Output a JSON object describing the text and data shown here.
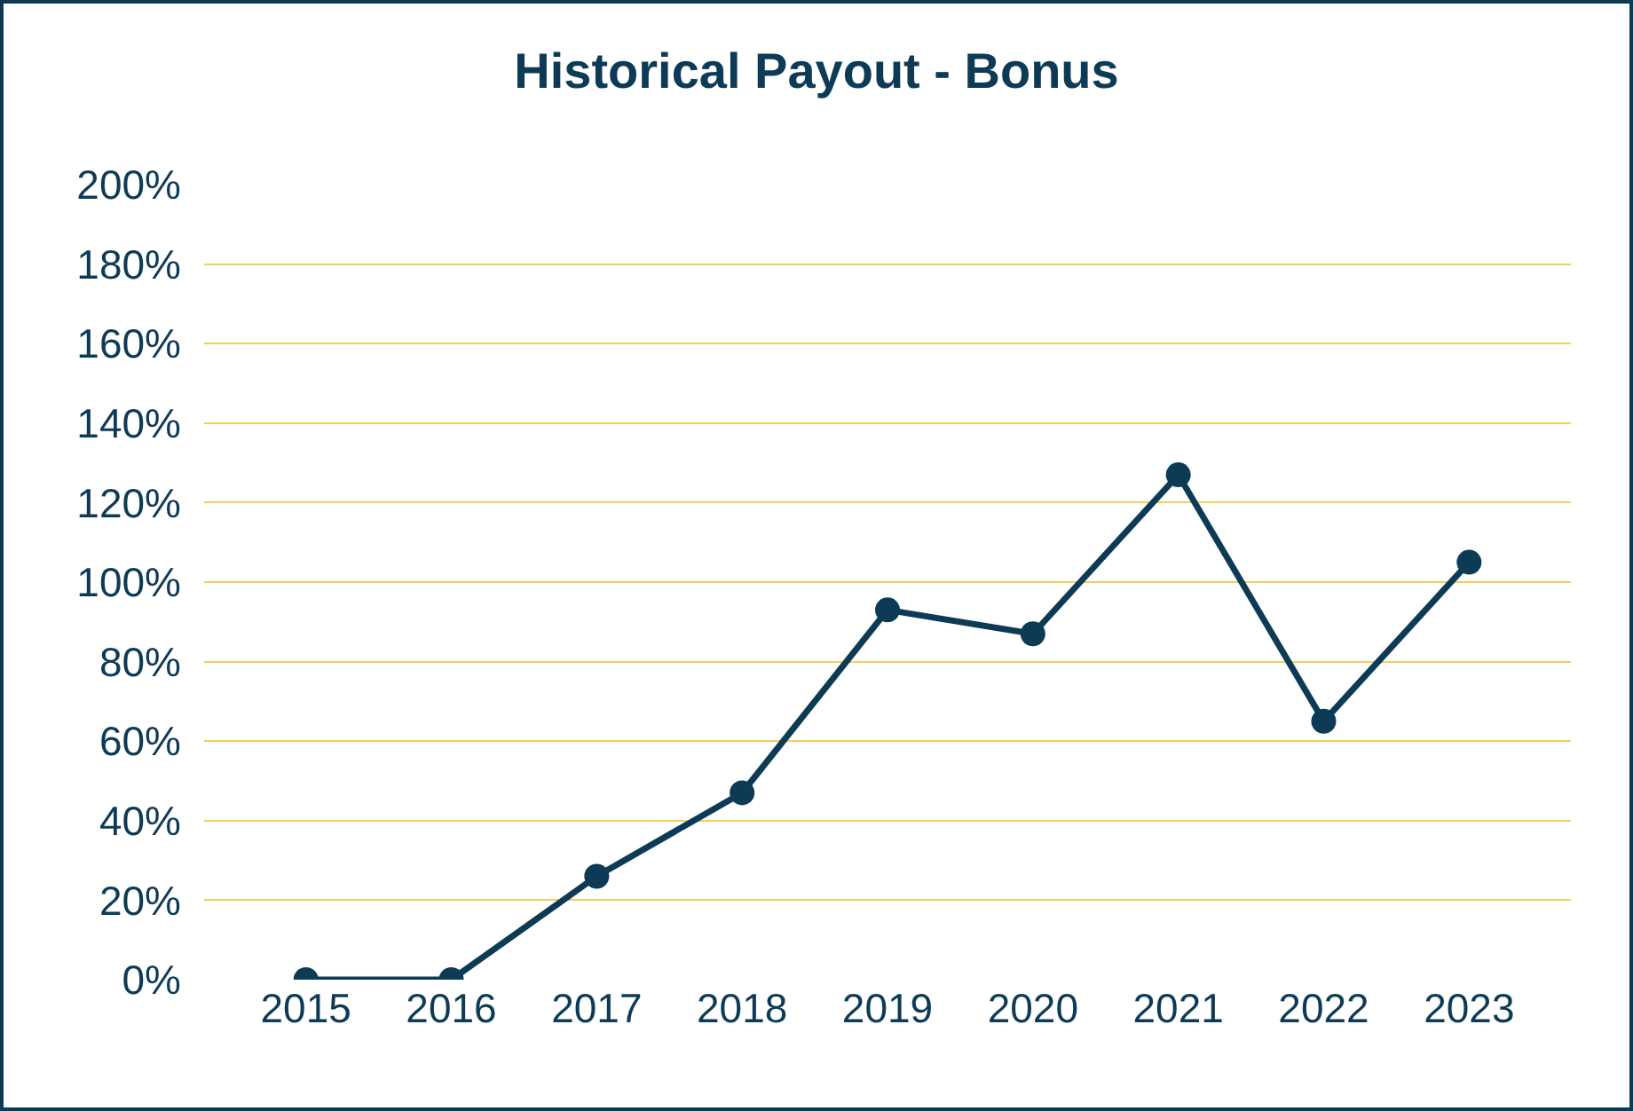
{
  "chart_data": {
    "type": "line",
    "title": "Historical Payout - Bonus",
    "categories": [
      "2015",
      "2016",
      "2017",
      "2018",
      "2019",
      "2020",
      "2021",
      "2022",
      "2023"
    ],
    "series": [
      {
        "color": "#0d3b56",
        "values": [
          0,
          0,
          26,
          47,
          93,
          87,
          127,
          65,
          105
        ]
      }
    ],
    "ylim": [
      0,
      200
    ],
    "yticks": [
      {
        "value": 0,
        "label": "0%"
      },
      {
        "value": 20,
        "label": "20%"
      },
      {
        "value": 40,
        "label": "40%"
      },
      {
        "value": 60,
        "label": "60%"
      },
      {
        "value": 80,
        "label": "80%"
      },
      {
        "value": 100,
        "label": "100%"
      },
      {
        "value": 120,
        "label": "120%"
      },
      {
        "value": 140,
        "label": "140%"
      },
      {
        "value": 160,
        "label": "160%"
      },
      {
        "value": 180,
        "label": "180%"
      },
      {
        "value": 200,
        "label": "200%"
      }
    ],
    "grid": "y",
    "marker": "circle",
    "line_style": "solid",
    "legend": false
  }
}
